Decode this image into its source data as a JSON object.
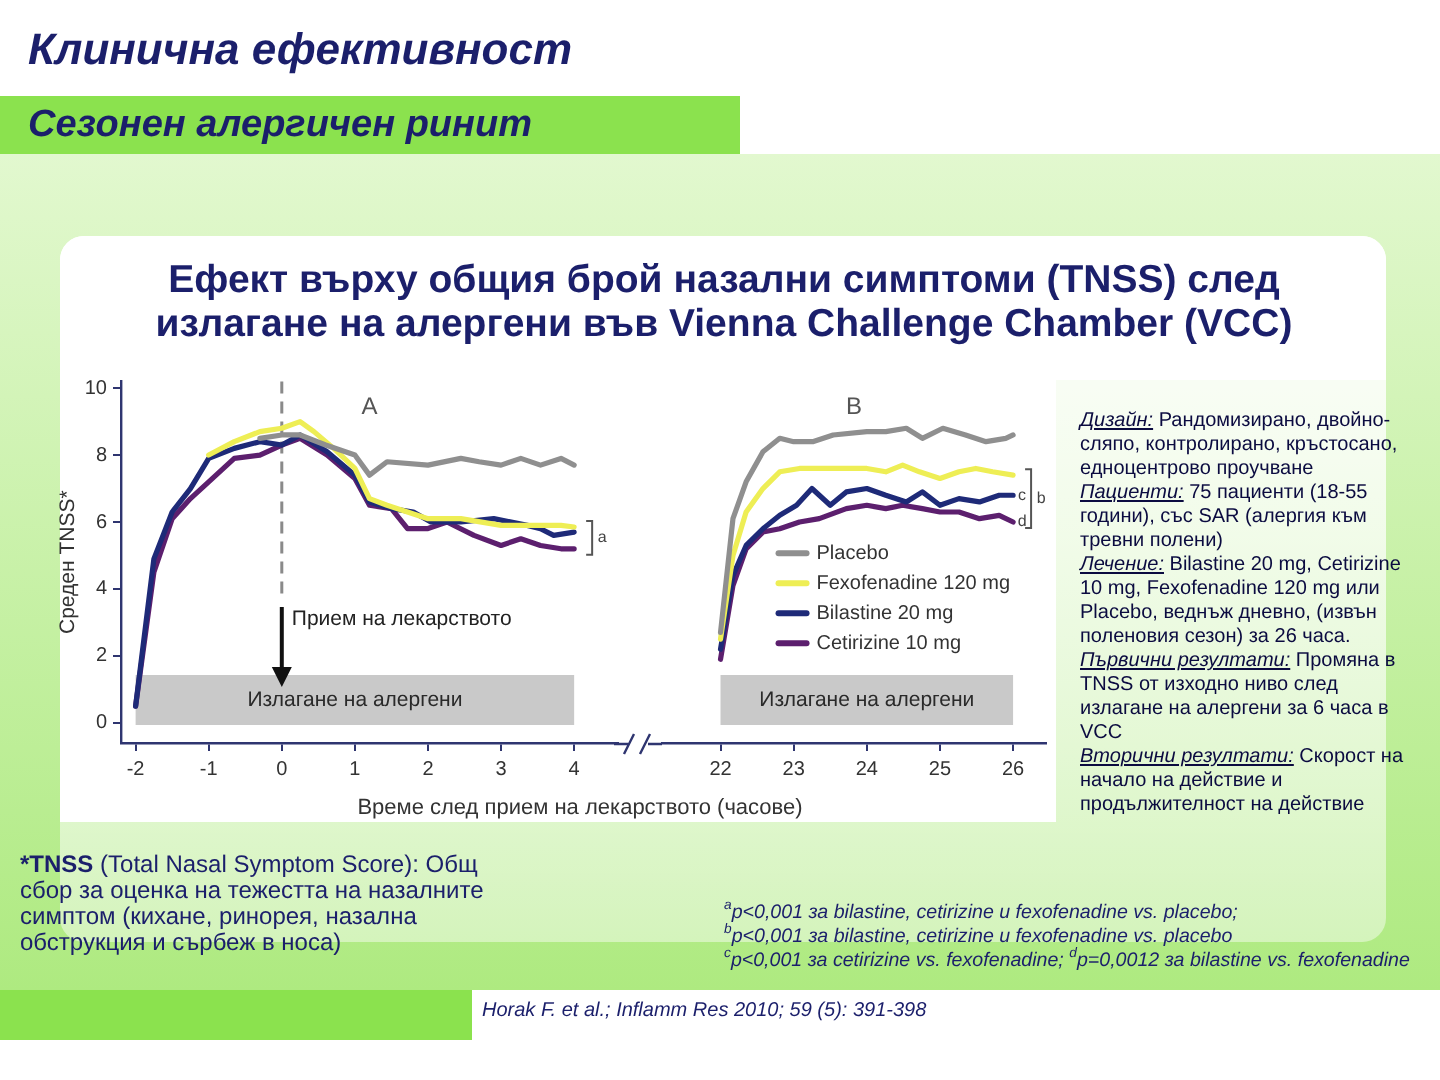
{
  "chart_data": [
    {
      "type": "line",
      "title": "Ефект върху общия брой назални симптоми (TNSS) след излагане на алергени във Vienna Challenge Chamber (VCC)",
      "xlabel": "Време след прием на лекарството (часове)",
      "ylabel": "Среден TNSS*",
      "xlim": [
        -2.2,
        4.6
      ],
      "xticks": [
        -2,
        -1,
        0,
        1,
        2,
        3,
        4
      ],
      "ylim": [
        -0.6,
        10.2
      ],
      "yticks": [
        0,
        2,
        4,
        6,
        8,
        10
      ],
      "marker": "none",
      "series": [
        {
          "color": "#8f8f8f",
          "x": [
            -0.3,
            0,
            0.25,
            0.6,
            1,
            1.2,
            1.44,
            2,
            2.45,
            2.7,
            3,
            3.27,
            3.54,
            3.82,
            4
          ],
          "values": [
            8.5,
            8.6,
            8.6,
            8.3,
            8.0,
            7.4,
            7.8,
            7.7,
            7.9,
            7.8,
            7.7,
            7.9,
            7.7,
            7.9,
            7.7
          ]
        },
        {
          "color": "#eeee55",
          "x": [
            -1,
            -0.65,
            -0.3,
            0,
            0.25,
            0.44,
            0.71,
            1,
            1.2,
            1.44,
            1.72,
            2,
            2.45,
            3,
            3.36,
            3.82,
            4
          ],
          "values": [
            8.0,
            8.4,
            8.7,
            8.8,
            9.0,
            8.7,
            8.2,
            7.6,
            6.7,
            6.5,
            6.3,
            6.1,
            6.1,
            5.9,
            5.9,
            5.9,
            5.85
          ]
        },
        {
          "color": "#1e2a78",
          "x": [
            -2,
            -1.75,
            -1.5,
            -1.25,
            -1,
            -0.65,
            -0.3,
            0,
            0.25,
            0.62,
            1,
            1.2,
            1.5,
            1.8,
            2.04,
            2.45,
            2.9,
            3.36,
            3.54,
            3.72,
            4
          ],
          "values": [
            0.5,
            4.9,
            6.3,
            7.0,
            7.9,
            8.2,
            8.4,
            8.3,
            8.6,
            8.1,
            7.4,
            6.6,
            6.4,
            6.3,
            6.0,
            6.0,
            6.1,
            5.9,
            5.8,
            5.6,
            5.7
          ]
        },
        {
          "color": "#5c1f6e",
          "x": [
            -2,
            -1.75,
            -1.5,
            -1.25,
            -1,
            -0.65,
            -0.3,
            0,
            0.25,
            0.62,
            1,
            1.2,
            1.5,
            1.72,
            1.99,
            2.26,
            2.63,
            3,
            3.27,
            3.54,
            3.82,
            4
          ],
          "values": [
            0.5,
            4.5,
            6.1,
            6.7,
            7.2,
            7.9,
            8.0,
            8.3,
            8.5,
            8.0,
            7.3,
            6.5,
            6.4,
            5.8,
            5.8,
            6.0,
            5.6,
            5.3,
            5.5,
            5.3,
            5.2,
            5.2
          ]
        }
      ],
      "ref_lines": [
        {
          "axis": "x",
          "value": 0,
          "label": "Прием на лекарството",
          "color": "#8a8a8a",
          "line_style": "dashed"
        }
      ],
      "bands": [
        {
          "axis": "x",
          "from": -2,
          "to": 4,
          "label": "Излагане на алергени",
          "color": "#c9c9c9"
        }
      ],
      "annotations": [
        "A",
        "a"
      ]
    },
    {
      "type": "line",
      "xlim": [
        21.2,
        26.45
      ],
      "xticks": [
        22,
        23,
        24,
        25,
        26
      ],
      "ylim": [
        -0.6,
        10.2
      ],
      "yticks": [
        0,
        2,
        4,
        6,
        8,
        10
      ],
      "tick_labels": "x",
      "legend": "right",
      "marker": "none",
      "series": [
        {
          "name": "Placebo",
          "color": "#8f8f8f",
          "x": [
            22,
            22.17,
            22.35,
            22.58,
            22.81,
            23,
            23.26,
            23.54,
            24,
            24.26,
            24.54,
            24.76,
            25.04,
            25.35,
            25.63,
            25.9,
            26
          ],
          "values": [
            2.7,
            6.1,
            7.2,
            8.1,
            8.5,
            8.4,
            8.4,
            8.6,
            8.7,
            8.7,
            8.8,
            8.5,
            8.8,
            8.6,
            8.4,
            8.5,
            8.6
          ]
        },
        {
          "name": "Fexofenadine 120 mg",
          "color": "#eeee55",
          "x": [
            22,
            22.17,
            22.35,
            22.58,
            22.81,
            23.08,
            23.54,
            24,
            24.26,
            24.49,
            24.72,
            25,
            25.26,
            25.49,
            25.72,
            26
          ],
          "values": [
            2.5,
            5.0,
            6.3,
            7.0,
            7.5,
            7.6,
            7.6,
            7.6,
            7.5,
            7.7,
            7.5,
            7.3,
            7.5,
            7.6,
            7.5,
            7.4
          ]
        },
        {
          "name": "Bilastine 20 mg",
          "color": "#1e2a78",
          "x": [
            22,
            22.17,
            22.35,
            22.58,
            22.81,
            23.04,
            23.25,
            23.5,
            23.72,
            24,
            24.26,
            24.54,
            24.76,
            25,
            25.26,
            25.54,
            25.81,
            26
          ],
          "values": [
            2.2,
            4.4,
            5.3,
            5.8,
            6.2,
            6.5,
            7.0,
            6.5,
            6.9,
            7.0,
            6.8,
            6.6,
            6.9,
            6.5,
            6.7,
            6.6,
            6.8,
            6.8
          ]
        },
        {
          "name": "Cetirizine 10 mg",
          "color": "#5c1f6e",
          "x": [
            22,
            22.17,
            22.35,
            22.58,
            22.81,
            23.08,
            23.35,
            23.72,
            24,
            24.26,
            24.49,
            24.76,
            25,
            25.26,
            25.54,
            25.81,
            26
          ],
          "values": [
            1.9,
            4.1,
            5.2,
            5.7,
            5.8,
            6.0,
            6.1,
            6.4,
            6.5,
            6.4,
            6.5,
            6.4,
            6.3,
            6.3,
            6.1,
            6.2,
            6.0
          ]
        }
      ],
      "bands": [
        {
          "axis": "x",
          "from": 22,
          "to": 26,
          "label": "Излагане на алергени",
          "color": "#c9c9c9"
        }
      ],
      "annotations": [
        "B",
        "b",
        "c",
        "d"
      ]
    },
    {
      "type": "other",
      "title": "Клинична ефективност",
      "subtitle": "Сезонен алергичен ринит",
      "annotations": [
        "Дизайн: Рандомизирано, двойно-сляпо, контролирано, кръстосано, едноцентрово проучване",
        "Пациенти: 75 пациенти (18-55 години), със SAR (алергия към тревни полени)",
        "Лечение: Bilastine 20 mg, Cetirizine 10 mg, Fexofenadine 120 mg или Placebo, веднъж дневно, (извън поленовия сезон) за 26 часа.",
        "Първични резултати: Промяна в TNSS от изходно ниво след излагане на алергени за 6 часа в VCC",
        "Вторични резултати: Скорост на начало на действие и продължителност на действие",
        "*TNSS (Total Nasal Symptom Score): Общ сбор за оценка на тежестта на назалните симптом (кихане, ринорея, назална обструкция и сърбеж в носа)",
        "$^{a}$p<0,001 за bilastine, cetirizine и fexofenadine vs. placebo;",
        "$^{b}$p<0,001 за bilastine, cetirizine и fexofenadine vs. placebo",
        "$^{c}$p<0,001 за cetirizine vs. fexofenadine; $^{d}$p=0,0012 за bilastine vs. fexofenadine",
        "Horak F. et al.; Inflamm Res 2010; 59 (5): 391-398"
      ]
    }
  ]
}
